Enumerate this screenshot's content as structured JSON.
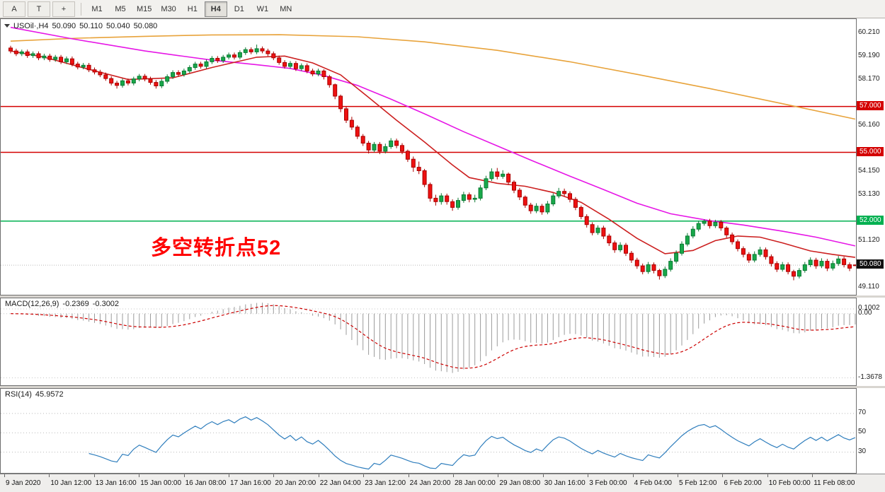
{
  "toolbar": {
    "tools": [
      {
        "id": "cursor",
        "label": "A"
      },
      {
        "id": "text",
        "label": "T"
      },
      {
        "id": "crosshair",
        "label": "+"
      }
    ],
    "timeframes": [
      "M1",
      "M5",
      "M15",
      "M30",
      "H1",
      "H4",
      "D1",
      "W1",
      "MN"
    ],
    "active_timeframe": "H4"
  },
  "chart": {
    "symbol_period": "USOil·,H4",
    "open": "50.090",
    "high": "50.110",
    "low": "50.040",
    "close": "50.080",
    "current_price_label": "50.080",
    "annotation": {
      "text": "多空转折点52",
      "color": "#ff0000"
    }
  },
  "chart_data": {
    "type": "candlestick",
    "ylim": [
      48.85,
      60.75
    ],
    "axis_labels": [
      60.21,
      59.19,
      58.17,
      56.16,
      54.15,
      53.13,
      51.12,
      49.11
    ],
    "hlines": [
      {
        "price": 57.0,
        "label": "57.000",
        "color": "#d40000"
      },
      {
        "price": 55.0,
        "label": "55.000",
        "color": "#d40000"
      },
      {
        "price": 52.0,
        "label": "52.000",
        "color": "#00b050"
      }
    ],
    "current_price": 50.08,
    "colors": {
      "bull": "#18a84a",
      "bull_border": "#0b7a33",
      "bear": "#ee1111",
      "bear_border": "#aa0000"
    },
    "moving_averages": [
      {
        "name": "ma-slow",
        "color": "#e8a33b",
        "points": [
          [
            0,
            59.85
          ],
          [
            12,
            59.98
          ],
          [
            24,
            60.06
          ],
          [
            36,
            60.12
          ],
          [
            48,
            60.13
          ],
          [
            62,
            60.04
          ],
          [
            74,
            59.82
          ],
          [
            87,
            59.45
          ],
          [
            100,
            58.95
          ],
          [
            112,
            58.4
          ],
          [
            125,
            57.78
          ],
          [
            138,
            57.12
          ],
          [
            151,
            56.45
          ]
        ]
      },
      {
        "name": "ma-mid",
        "color": "#e616e6",
        "points": [
          [
            0,
            60.45
          ],
          [
            11,
            59.95
          ],
          [
            24,
            59.42
          ],
          [
            36,
            59.02
          ],
          [
            44,
            58.82
          ],
          [
            50,
            58.66
          ],
          [
            56,
            58.35
          ],
          [
            62,
            57.92
          ],
          [
            68,
            57.32
          ],
          [
            74,
            56.68
          ],
          [
            81,
            55.9
          ],
          [
            87,
            55.28
          ],
          [
            93,
            54.66
          ],
          [
            100,
            53.96
          ],
          [
            106,
            53.38
          ],
          [
            112,
            52.78
          ],
          [
            118,
            52.32
          ],
          [
            125,
            52.02
          ],
          [
            131,
            51.83
          ],
          [
            138,
            51.56
          ],
          [
            144,
            51.3
          ],
          [
            151,
            50.92
          ]
        ]
      },
      {
        "name": "ma-fast",
        "color": "#cc2020",
        "points": [
          [
            0,
            59.42
          ],
          [
            6,
            59.15
          ],
          [
            14,
            58.62
          ],
          [
            21,
            58.18
          ],
          [
            29,
            58.25
          ],
          [
            36,
            58.7
          ],
          [
            44,
            59.15
          ],
          [
            49,
            59.2
          ],
          [
            54,
            58.9
          ],
          [
            59,
            58.38
          ],
          [
            64,
            57.4
          ],
          [
            69,
            56.4
          ],
          [
            74,
            55.45
          ],
          [
            79,
            54.45
          ],
          [
            82,
            53.9
          ],
          [
            87,
            53.65
          ],
          [
            92,
            53.52
          ],
          [
            97,
            53.25
          ],
          [
            102,
            52.82
          ],
          [
            107,
            52.08
          ],
          [
            112,
            51.25
          ],
          [
            117,
            50.58
          ],
          [
            122,
            50.72
          ],
          [
            126,
            51.15
          ],
          [
            130,
            51.35
          ],
          [
            134,
            51.3
          ],
          [
            138,
            51.05
          ],
          [
            143,
            50.7
          ],
          [
            147,
            50.55
          ],
          [
            151,
            50.42
          ]
        ]
      }
    ],
    "candles": [
      [
        59.55,
        59.65,
        59.32,
        59.42
      ],
      [
        59.42,
        59.52,
        59.2,
        59.3
      ],
      [
        59.3,
        59.48,
        59.2,
        59.38
      ],
      [
        59.38,
        59.48,
        59.12,
        59.22
      ],
      [
        59.22,
        59.4,
        59.12,
        59.3
      ],
      [
        59.3,
        59.4,
        59.02,
        59.12
      ],
      [
        59.12,
        59.3,
        59.02,
        59.2
      ],
      [
        59.2,
        59.3,
        58.95,
        59.05
      ],
      [
        59.05,
        59.25,
        58.95,
        59.15
      ],
      [
        59.15,
        59.25,
        58.85,
        58.95
      ],
      [
        58.95,
        59.18,
        58.85,
        59.08
      ],
      [
        59.08,
        59.18,
        58.75,
        58.85
      ],
      [
        58.85,
        58.95,
        58.62,
        58.72
      ],
      [
        58.72,
        58.9,
        58.62,
        58.8
      ],
      [
        58.8,
        58.9,
        58.5,
        58.6
      ],
      [
        58.6,
        58.7,
        58.4,
        58.5
      ],
      [
        58.5,
        58.6,
        58.28,
        58.38
      ],
      [
        58.38,
        58.48,
        58.12,
        58.22
      ],
      [
        58.22,
        58.32,
        57.92,
        58.02
      ],
      [
        58.02,
        58.12,
        57.78,
        57.92
      ],
      [
        57.92,
        58.22,
        57.82,
        58.12
      ],
      [
        58.12,
        58.22,
        57.92,
        58.02
      ],
      [
        58.02,
        58.3,
        57.92,
        58.2
      ],
      [
        58.2,
        58.42,
        58.1,
        58.32
      ],
      [
        58.32,
        58.42,
        58.1,
        58.2
      ],
      [
        58.2,
        58.3,
        57.95,
        58.05
      ],
      [
        58.05,
        58.15,
        57.78,
        57.9
      ],
      [
        57.9,
        58.2,
        57.8,
        58.1
      ],
      [
        58.1,
        58.4,
        58.0,
        58.3
      ],
      [
        58.3,
        58.58,
        58.2,
        58.48
      ],
      [
        58.48,
        58.58,
        58.3,
        58.4
      ],
      [
        58.4,
        58.65,
        58.3,
        58.55
      ],
      [
        58.55,
        58.8,
        58.45,
        58.7
      ],
      [
        58.7,
        58.95,
        58.6,
        58.85
      ],
      [
        58.85,
        58.95,
        58.65,
        58.75
      ],
      [
        58.75,
        59.05,
        58.65,
        58.95
      ],
      [
        58.95,
        59.2,
        58.85,
        59.1
      ],
      [
        59.1,
        59.2,
        58.9,
        59.0
      ],
      [
        59.0,
        59.25,
        58.9,
        59.15
      ],
      [
        59.15,
        59.35,
        59.05,
        59.25
      ],
      [
        59.25,
        59.35,
        59.05,
        59.15
      ],
      [
        59.15,
        59.45,
        59.05,
        59.35
      ],
      [
        59.35,
        59.58,
        59.25,
        59.48
      ],
      [
        59.48,
        59.58,
        59.28,
        59.38
      ],
      [
        59.38,
        59.7,
        59.28,
        59.52
      ],
      [
        59.52,
        59.62,
        59.32,
        59.42
      ],
      [
        59.42,
        59.52,
        59.2,
        59.3
      ],
      [
        59.3,
        59.4,
        59.02,
        59.12
      ],
      [
        59.12,
        59.22,
        58.82,
        58.92
      ],
      [
        58.92,
        59.02,
        58.65,
        58.75
      ],
      [
        58.75,
        58.98,
        58.65,
        58.88
      ],
      [
        58.88,
        58.98,
        58.55,
        58.65
      ],
      [
        58.65,
        58.88,
        58.55,
        58.78
      ],
      [
        58.78,
        58.88,
        58.45,
        58.55
      ],
      [
        58.55,
        58.65,
        58.32,
        58.42
      ],
      [
        58.42,
        58.65,
        58.32,
        58.55
      ],
      [
        58.55,
        58.62,
        58.18,
        58.3
      ],
      [
        58.3,
        58.38,
        57.82,
        57.95
      ],
      [
        57.95,
        58.0,
        57.32,
        57.45
      ],
      [
        57.45,
        57.52,
        56.75,
        56.9
      ],
      [
        56.9,
        56.98,
        56.28,
        56.4
      ],
      [
        56.4,
        56.55,
        55.98,
        56.1
      ],
      [
        56.1,
        56.18,
        55.58,
        55.7
      ],
      [
        55.7,
        55.8,
        55.28,
        55.4
      ],
      [
        55.4,
        55.5,
        54.95,
        55.1
      ],
      [
        55.1,
        55.45,
        55.0,
        55.35
      ],
      [
        55.35,
        55.45,
        54.92,
        55.05
      ],
      [
        55.05,
        55.38,
        54.95,
        55.25
      ],
      [
        55.25,
        55.62,
        55.15,
        55.5
      ],
      [
        55.5,
        55.6,
        55.18,
        55.3
      ],
      [
        55.3,
        55.4,
        54.92,
        55.05
      ],
      [
        55.05,
        55.12,
        54.58,
        54.7
      ],
      [
        54.7,
        54.82,
        54.15,
        54.35
      ],
      [
        54.35,
        54.6,
        54.05,
        54.2
      ],
      [
        54.2,
        54.28,
        53.48,
        53.6
      ],
      [
        53.6,
        53.68,
        52.85,
        53.0
      ],
      [
        53.0,
        53.15,
        52.68,
        52.85
      ],
      [
        52.85,
        53.22,
        52.72,
        53.1
      ],
      [
        53.1,
        53.2,
        52.72,
        52.85
      ],
      [
        52.85,
        52.95,
        52.45,
        52.6
      ],
      [
        52.6,
        53.02,
        52.5,
        52.9
      ],
      [
        52.9,
        53.28,
        52.8,
        53.15
      ],
      [
        53.15,
        53.25,
        52.82,
        52.95
      ],
      [
        52.95,
        53.15,
        52.82,
        53.0
      ],
      [
        53.0,
        53.58,
        52.9,
        53.45
      ],
      [
        53.45,
        53.98,
        53.35,
        53.85
      ],
      [
        53.85,
        54.3,
        53.75,
        54.15
      ],
      [
        54.15,
        54.32,
        53.82,
        53.95
      ],
      [
        53.95,
        54.22,
        53.85,
        54.05
      ],
      [
        54.05,
        54.12,
        53.58,
        53.7
      ],
      [
        53.7,
        53.78,
        53.22,
        53.35
      ],
      [
        53.35,
        53.45,
        52.92,
        53.05
      ],
      [
        53.05,
        53.12,
        52.58,
        52.7
      ],
      [
        52.7,
        52.8,
        52.32,
        52.45
      ],
      [
        52.45,
        52.78,
        52.35,
        52.65
      ],
      [
        52.65,
        52.75,
        52.28,
        52.4
      ],
      [
        52.4,
        52.88,
        52.3,
        52.75
      ],
      [
        52.75,
        53.22,
        52.65,
        53.1
      ],
      [
        53.1,
        53.45,
        53.0,
        53.3
      ],
      [
        53.3,
        53.42,
        53.08,
        53.2
      ],
      [
        53.2,
        53.3,
        52.82,
        52.95
      ],
      [
        52.95,
        53.05,
        52.48,
        52.6
      ],
      [
        52.6,
        52.68,
        52.08,
        52.2
      ],
      [
        52.2,
        52.3,
        51.72,
        51.85
      ],
      [
        51.85,
        51.95,
        51.38,
        51.5
      ],
      [
        51.5,
        51.82,
        51.4,
        51.7
      ],
      [
        51.7,
        51.8,
        51.22,
        51.35
      ],
      [
        51.35,
        51.45,
        50.92,
        51.05
      ],
      [
        51.05,
        51.15,
        50.62,
        50.75
      ],
      [
        50.75,
        51.08,
        50.65,
        50.95
      ],
      [
        50.95,
        51.05,
        50.48,
        50.6
      ],
      [
        50.6,
        50.7,
        50.18,
        50.3
      ],
      [
        50.3,
        50.4,
        49.92,
        50.05
      ],
      [
        50.05,
        50.15,
        49.68,
        49.8
      ],
      [
        49.8,
        50.22,
        49.7,
        50.1
      ],
      [
        50.1,
        50.2,
        49.72,
        49.85
      ],
      [
        49.85,
        49.92,
        49.45,
        49.62
      ],
      [
        49.62,
        50.02,
        49.52,
        49.9
      ],
      [
        49.9,
        50.38,
        49.8,
        50.25
      ],
      [
        50.25,
        50.72,
        50.15,
        50.6
      ],
      [
        50.6,
        51.12,
        50.5,
        51.0
      ],
      [
        51.0,
        51.48,
        50.9,
        51.35
      ],
      [
        51.35,
        51.78,
        51.25,
        51.65
      ],
      [
        51.65,
        52.02,
        51.55,
        51.9
      ],
      [
        51.9,
        52.08,
        51.8,
        52.0
      ],
      [
        52.0,
        52.1,
        51.68,
        51.8
      ],
      [
        51.8,
        52.06,
        51.7,
        51.95
      ],
      [
        51.95,
        52.05,
        51.58,
        51.7
      ],
      [
        51.7,
        51.78,
        51.28,
        51.4
      ],
      [
        51.4,
        51.5,
        50.98,
        51.1
      ],
      [
        51.1,
        51.2,
        50.68,
        50.8
      ],
      [
        50.8,
        50.9,
        50.42,
        50.55
      ],
      [
        50.55,
        50.65,
        50.18,
        50.3
      ],
      [
        50.3,
        50.68,
        50.2,
        50.55
      ],
      [
        50.55,
        50.88,
        50.45,
        50.75
      ],
      [
        50.75,
        50.85,
        50.32,
        50.45
      ],
      [
        50.45,
        50.55,
        50.02,
        50.15
      ],
      [
        50.15,
        50.25,
        49.78,
        49.9
      ],
      [
        49.9,
        50.22,
        49.8,
        50.1
      ],
      [
        50.1,
        50.2,
        49.68,
        49.8
      ],
      [
        49.8,
        49.88,
        49.42,
        49.6
      ],
      [
        49.6,
        49.95,
        49.5,
        49.85
      ],
      [
        49.85,
        50.22,
        49.75,
        50.1
      ],
      [
        50.1,
        50.42,
        50.0,
        50.3
      ],
      [
        50.3,
        50.4,
        49.92,
        50.05
      ],
      [
        50.05,
        50.38,
        49.95,
        50.25
      ],
      [
        50.25,
        50.35,
        49.82,
        49.95
      ],
      [
        49.95,
        50.28,
        49.85,
        50.15
      ],
      [
        50.15,
        50.48,
        50.05,
        50.35
      ],
      [
        50.35,
        50.45,
        49.98,
        50.1
      ],
      [
        50.1,
        50.2,
        49.82,
        49.95
      ],
      [
        50.09,
        50.11,
        50.04,
        50.08
      ]
    ]
  },
  "macd": {
    "label": "MACD(12,26,9)",
    "value_main": "-0.2369",
    "value_signal": "-0.3002",
    "histogram_color": "#9b9b9b",
    "signal_color": "#cc0000",
    "scale_labels": [
      {
        "text": "0.1002",
        "value": 0.1002
      },
      {
        "text": "0.00",
        "value": 0.0
      },
      {
        "text": "-1.3678",
        "value": -1.3678
      }
    ]
  },
  "rsi": {
    "label": "RSI(14)",
    "value": "45.9572",
    "levels": [
      70,
      50,
      30
    ],
    "line_color": "#2f7ebd"
  },
  "time_axis": {
    "labels": [
      "9 Jan 2020",
      "10 Jan 12:00",
      "13 Jan 16:00",
      "15 Jan 00:00",
      "16 Jan 08:00",
      "17 Jan 16:00",
      "20 Jan 20:00",
      "22 Jan 04:00",
      "23 Jan 12:00",
      "24 Jan 20:00",
      "28 Jan 00:00",
      "29 Jan 08:00",
      "30 Jan 16:00",
      "3 Feb 00:00",
      "4 Feb 04:00",
      "5 Feb 12:00",
      "6 Feb 20:00",
      "10 Feb 00:00",
      "11 Feb 08:00"
    ]
  }
}
